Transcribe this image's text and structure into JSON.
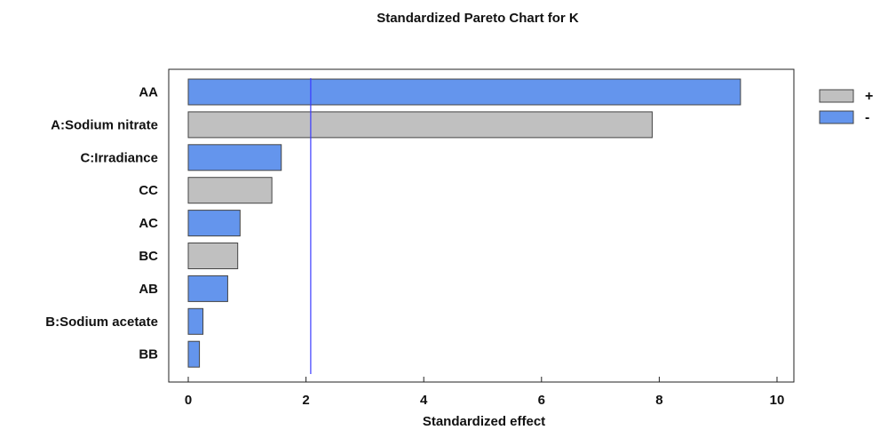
{
  "chart_data": {
    "type": "bar",
    "orientation": "horizontal",
    "title": "Standardized Pareto Chart for K",
    "xlabel": "Standardized effect",
    "ylabel": "",
    "xlim": [
      0,
      10
    ],
    "xticks": [
      0,
      2,
      4,
      6,
      8,
      10
    ],
    "threshold": 2.08,
    "grid": false,
    "legend_position": "right",
    "legend": [
      {
        "sign": "+",
        "label": "+",
        "color": "#c0c0c0"
      },
      {
        "sign": "-",
        "label": "-",
        "color": "#6495ed"
      }
    ],
    "colors": {
      "positive": "#c0c0c0",
      "negative": "#6495ed",
      "threshold": "#3a3aff",
      "edge": "#444444"
    },
    "categories": [
      "AA",
      "A:Sodium nitrate",
      "C:Irradiance",
      "CC",
      "AC",
      "BC",
      "AB",
      "B:Sodium acetate",
      "BB"
    ],
    "values": [
      9.38,
      7.88,
      1.58,
      1.42,
      0.88,
      0.84,
      0.67,
      0.25,
      0.19
    ],
    "signs": [
      "-",
      "+",
      "-",
      "+",
      "-",
      "+",
      "-",
      "-",
      "-"
    ]
  }
}
